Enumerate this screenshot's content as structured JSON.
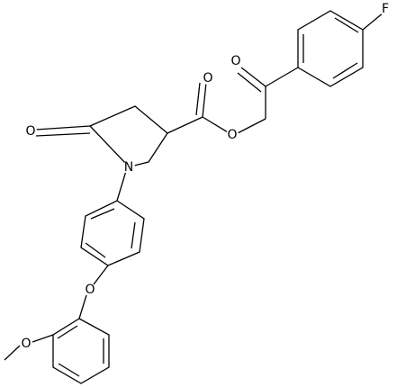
{
  "atoms": [
    {
      "label": "F"
    },
    {
      "label": "O"
    },
    {
      "label": "O"
    },
    {
      "label": "O"
    },
    {
      "label": "O"
    },
    {
      "label": "N"
    },
    {
      "label": "O"
    },
    {
      "label": "O"
    }
  ]
}
